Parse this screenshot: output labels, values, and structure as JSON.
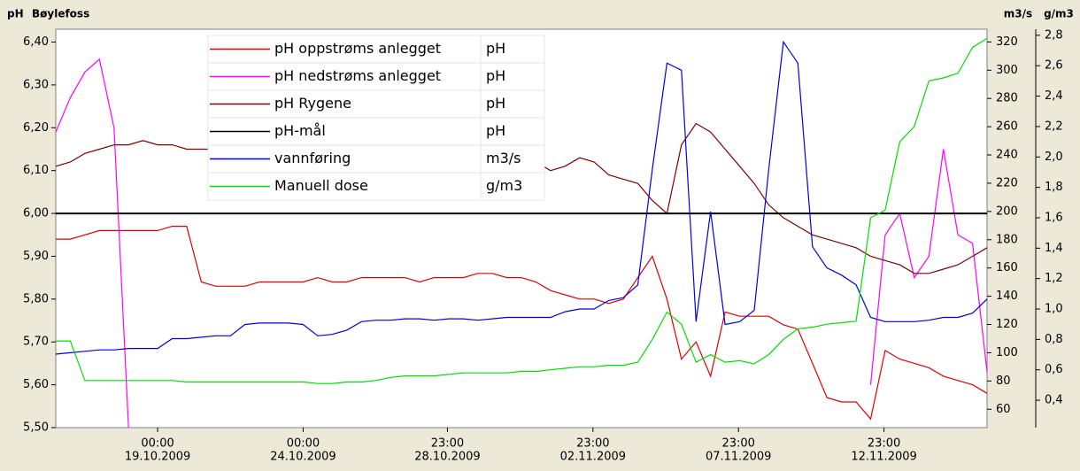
{
  "chart_data": {
    "type": "line",
    "title": "Bøylefoss",
    "y_label": "pH",
    "y2_label": "m3/s",
    "y3_label": "g/m3",
    "xlim": [
      "2009-10-15T12:00",
      "2009-11-16T12:00"
    ],
    "xticks": [
      {
        "value": "2009-10-19T00:00",
        "label": [
          "00:00",
          "19.10.2009"
        ]
      },
      {
        "value": "2009-10-24T00:00",
        "label": [
          "00:00",
          "24.10.2009"
        ]
      },
      {
        "value": "2009-10-28T23:00",
        "label": [
          "23:00",
          "28.10.2009"
        ]
      },
      {
        "value": "2009-11-02T23:00",
        "label": [
          "23:00",
          "02.11.2009"
        ]
      },
      {
        "value": "2009-11-07T23:00",
        "label": [
          "23:00",
          "07.11.2009"
        ]
      },
      {
        "value": "2009-11-12T23:00",
        "label": [
          "23:00",
          "12.11.2009"
        ]
      }
    ],
    "ylim": [
      5.5,
      6.43
    ],
    "yticks": [
      {
        "value": 5.5,
        "label": "5,50"
      },
      {
        "value": 5.6,
        "label": "5,60"
      },
      {
        "value": 5.7,
        "label": "5,70"
      },
      {
        "value": 5.8,
        "label": "5,80"
      },
      {
        "value": 5.9,
        "label": "5,90"
      },
      {
        "value": 6.0,
        "label": "6,00"
      },
      {
        "value": 6.1,
        "label": "6,10"
      },
      {
        "value": 6.2,
        "label": "6,20"
      },
      {
        "value": 6.3,
        "label": "6,30"
      },
      {
        "value": 6.4,
        "label": "6,40"
      }
    ],
    "y2lim": [
      47,
      329
    ],
    "y2ticks": [
      60,
      80,
      100,
      120,
      140,
      160,
      180,
      200,
      220,
      240,
      260,
      280,
      300,
      320
    ],
    "y3lim": [
      0.22,
      2.84
    ],
    "y3ticks": [
      {
        "value": 0.4,
        "label": "0,4"
      },
      {
        "value": 0.6,
        "label": "0,6"
      },
      {
        "value": 0.8,
        "label": "0,8"
      },
      {
        "value": 1.0,
        "label": "1,0"
      },
      {
        "value": 1.2,
        "label": "1,2"
      },
      {
        "value": 1.4,
        "label": "1,4"
      },
      {
        "value": 1.6,
        "label": "1,6"
      },
      {
        "value": 1.8,
        "label": "1,8"
      },
      {
        "value": 2.0,
        "label": "2,0"
      },
      {
        "value": 2.2,
        "label": "2,2"
      },
      {
        "value": 2.4,
        "label": "2,4"
      },
      {
        "value": 2.6,
        "label": "2,6"
      },
      {
        "value": 2.8,
        "label": "2,8"
      }
    ],
    "x": [
      "2009-10-15T12:00",
      "2009-10-16T00:00",
      "2009-10-16T12:00",
      "2009-10-17T00:00",
      "2009-10-17T12:00",
      "2009-10-18T00:00",
      "2009-10-18T12:00",
      "2009-10-19T00:00",
      "2009-10-19T12:00",
      "2009-10-20T00:00",
      "2009-10-20T12:00",
      "2009-10-21T00:00",
      "2009-10-21T12:00",
      "2009-10-22T00:00",
      "2009-10-22T12:00",
      "2009-10-23T00:00",
      "2009-10-23T12:00",
      "2009-10-24T00:00",
      "2009-10-24T12:00",
      "2009-10-25T00:00",
      "2009-10-25T12:00",
      "2009-10-26T00:00",
      "2009-10-26T12:00",
      "2009-10-27T00:00",
      "2009-10-27T12:00",
      "2009-10-28T00:00",
      "2009-10-28T12:00",
      "2009-10-29T00:00",
      "2009-10-29T12:00",
      "2009-10-30T00:00",
      "2009-10-30T12:00",
      "2009-10-31T00:00",
      "2009-10-31T12:00",
      "2009-11-01T00:00",
      "2009-11-01T12:00",
      "2009-11-02T00:00",
      "2009-11-02T12:00",
      "2009-11-03T00:00",
      "2009-11-03T12:00",
      "2009-11-04T00:00",
      "2009-11-04T12:00",
      "2009-11-05T00:00",
      "2009-11-05T12:00",
      "2009-11-06T00:00",
      "2009-11-06T12:00",
      "2009-11-07T00:00",
      "2009-11-07T12:00",
      "2009-11-08T00:00",
      "2009-11-08T12:00",
      "2009-11-09T00:00",
      "2009-11-09T12:00",
      "2009-11-10T00:00",
      "2009-11-10T12:00",
      "2009-11-11T00:00",
      "2009-11-11T12:00",
      "2009-11-12T00:00",
      "2009-11-12T12:00",
      "2009-11-13T00:00",
      "2009-11-13T12:00",
      "2009-11-14T00:00",
      "2009-11-14T12:00",
      "2009-11-15T00:00",
      "2009-11-15T12:00",
      "2009-11-16T00:00",
      "2009-11-16T12:00"
    ],
    "series": [
      {
        "name": "pH oppstrøms anlegget",
        "unit": "pH",
        "color": "#e00000",
        "axis": "y",
        "values": [
          5.94,
          5.94,
          5.95,
          5.96,
          5.96,
          5.96,
          5.96,
          5.96,
          5.97,
          5.97,
          5.84,
          5.83,
          5.83,
          5.83,
          5.84,
          5.84,
          5.84,
          5.84,
          5.85,
          5.84,
          5.84,
          5.85,
          5.85,
          5.85,
          5.85,
          5.84,
          5.85,
          5.85,
          5.85,
          5.86,
          5.86,
          5.85,
          5.85,
          5.84,
          5.82,
          5.81,
          5.8,
          5.8,
          5.79,
          5.8,
          5.85,
          5.9,
          5.8,
          5.66,
          5.7,
          5.62,
          5.77,
          5.76,
          5.76,
          5.76,
          5.74,
          5.73,
          5.65,
          5.57,
          5.56,
          5.56,
          5.52,
          5.68,
          5.66,
          5.65,
          5.64,
          5.62,
          5.61,
          5.6,
          5.58
        ]
      },
      {
        "name": "pH nedstrøms anlegget",
        "unit": "pH",
        "color": "#ff00ff",
        "axis": "y",
        "values": [
          6.19,
          6.27,
          6.33,
          6.36,
          6.2,
          5.5,
          null,
          null,
          null,
          null,
          null,
          null,
          null,
          null,
          null,
          null,
          null,
          null,
          null,
          null,
          null,
          null,
          null,
          null,
          null,
          null,
          null,
          null,
          null,
          null,
          null,
          null,
          null,
          null,
          null,
          null,
          null,
          null,
          null,
          null,
          null,
          null,
          null,
          null,
          null,
          null,
          null,
          null,
          null,
          null,
          null,
          null,
          null,
          null,
          null,
          null,
          5.6,
          5.95,
          6.0,
          5.85,
          5.9,
          6.15,
          5.95,
          5.93,
          5.63
        ]
      },
      {
        "name": "pH Rygene",
        "unit": "pH",
        "color": "#800000",
        "axis": "y",
        "values": [
          6.11,
          6.12,
          6.14,
          6.15,
          6.16,
          6.16,
          6.17,
          6.16,
          6.16,
          6.15,
          6.15,
          6.15,
          6.15,
          6.15,
          6.14,
          6.15,
          6.15,
          6.14,
          6.14,
          6.14,
          6.14,
          6.14,
          6.13,
          6.13,
          6.13,
          6.13,
          6.12,
          6.12,
          6.12,
          6.12,
          6.12,
          6.12,
          6.12,
          6.12,
          6.1,
          6.11,
          6.13,
          6.12,
          6.09,
          6.08,
          6.07,
          6.03,
          6.0,
          6.16,
          6.21,
          6.19,
          6.15,
          6.11,
          6.07,
          6.02,
          5.99,
          5.97,
          5.95,
          5.94,
          5.93,
          5.92,
          5.9,
          5.89,
          5.88,
          5.86,
          5.86,
          5.87,
          5.88,
          5.9,
          5.92
        ]
      },
      {
        "name": "pH-mål",
        "unit": "pH",
        "color": "#000000",
        "axis": "y",
        "values": [
          6.0,
          6.0,
          6.0,
          6.0,
          6.0,
          6.0,
          6.0,
          6.0,
          6.0,
          6.0,
          6.0,
          6.0,
          6.0,
          6.0,
          6.0,
          6.0,
          6.0,
          6.0,
          6.0,
          6.0,
          6.0,
          6.0,
          6.0,
          6.0,
          6.0,
          6.0,
          6.0,
          6.0,
          6.0,
          6.0,
          6.0,
          6.0,
          6.0,
          6.0,
          6.0,
          6.0,
          6.0,
          6.0,
          6.0,
          6.0,
          6.0,
          6.0,
          6.0,
          6.0,
          6.0,
          6.0,
          6.0,
          6.0,
          6.0,
          6.0,
          6.0,
          6.0,
          6.0,
          6.0,
          6.0,
          6.0,
          6.0,
          6.0,
          6.0,
          6.0,
          6.0,
          6.0,
          6.0,
          6.0,
          6.0
        ]
      },
      {
        "name": "vannføring",
        "unit": "m3/s",
        "color": "#0000e0",
        "axis": "y2",
        "values": [
          99,
          100,
          101,
          102,
          102,
          103,
          103,
          103,
          110,
          110,
          111,
          112,
          112,
          120,
          121,
          121,
          121,
          120,
          112,
          113,
          116,
          122,
          123,
          123,
          124,
          124,
          123,
          124,
          124,
          123,
          124,
          125,
          125,
          125,
          125,
          129,
          131,
          131,
          137,
          139,
          148,
          230,
          305,
          300,
          122,
          200,
          120,
          122,
          130,
          230,
          320,
          305,
          175,
          160,
          155,
          148,
          125,
          122,
          122,
          122,
          123,
          125,
          125,
          128,
          138
        ]
      },
      {
        "name": "Manuell dose",
        "unit": "g/m3",
        "color": "#00e000",
        "axis": "y3",
        "values": [
          0.79,
          0.79,
          0.53,
          0.53,
          0.53,
          0.53,
          0.53,
          0.53,
          0.53,
          0.52,
          0.52,
          0.52,
          0.52,
          0.52,
          0.52,
          0.52,
          0.52,
          0.52,
          0.51,
          0.51,
          0.52,
          0.52,
          0.53,
          0.55,
          0.56,
          0.56,
          0.56,
          0.57,
          0.58,
          0.58,
          0.58,
          0.58,
          0.59,
          0.59,
          0.6,
          0.61,
          0.62,
          0.62,
          0.63,
          0.63,
          0.65,
          0.8,
          0.98,
          0.9,
          0.65,
          0.7,
          0.65,
          0.66,
          0.64,
          0.7,
          0.8,
          0.87,
          0.88,
          0.9,
          0.91,
          0.92,
          1.6,
          1.65,
          2.1,
          2.2,
          2.5,
          2.52,
          2.55,
          2.72,
          2.78
        ]
      }
    ]
  }
}
